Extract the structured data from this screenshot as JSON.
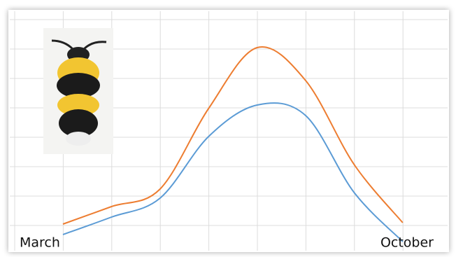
{
  "chart_data": {
    "type": "line",
    "categories": [
      "March",
      null,
      null,
      null,
      null,
      null,
      null,
      "October"
    ],
    "series": [
      {
        "color": "#ed7d31",
        "values": [
          3,
          5.5,
          8,
          19.5,
          28.2,
          23.5,
          11.5,
          3.2
        ]
      },
      {
        "color": "#5b9bd5",
        "values": [
          1.5,
          4,
          6.7,
          15.5,
          20,
          18.5,
          7.5,
          0.5
        ]
      }
    ],
    "grid": true
  }
}
